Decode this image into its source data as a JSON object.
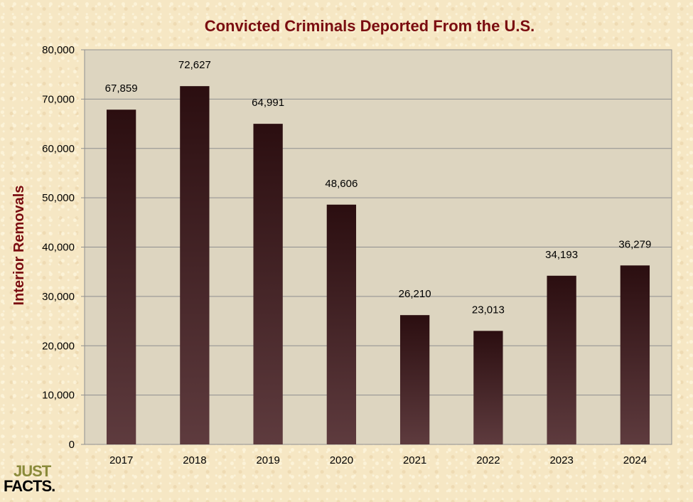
{
  "chart_data": {
    "type": "bar",
    "title": "Convicted Criminals Deported From the U.S.",
    "ylabel": "Interior Removals",
    "xlabel": "",
    "categories": [
      "2017",
      "2018",
      "2019",
      "2020",
      "2021",
      "2022",
      "2023",
      "2024"
    ],
    "values": [
      67859,
      72627,
      64991,
      48606,
      26210,
      23013,
      34193,
      36279
    ],
    "data_labels": [
      "67,859",
      "72,627",
      "64,991",
      "48,606",
      "26,210",
      "23,013",
      "34,193",
      "36,279"
    ],
    "ylim": [
      0,
      80000
    ],
    "yticks": [
      "0",
      "10,000",
      "20,000",
      "30,000",
      "40,000",
      "50,000",
      "60,000",
      "70,000",
      "80,000"
    ],
    "grid": true,
    "legend": "none",
    "colors": {
      "plot_background": "#ddd5c0",
      "bar_top": "#2b0e10",
      "bar_bottom": "#5e3b3e",
      "title": "#7a0c10"
    }
  },
  "logo": {
    "line1": "JUST",
    "line2": "FACTS."
  }
}
